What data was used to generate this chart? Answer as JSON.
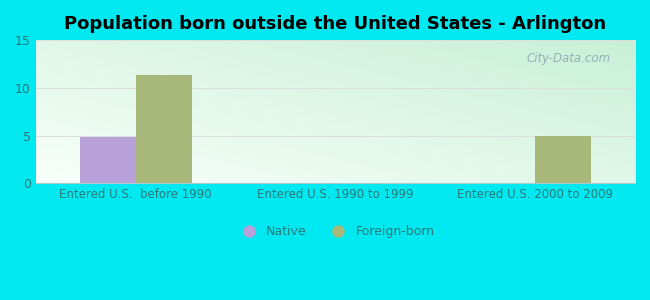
{
  "title": "Population born outside the United States - Arlington",
  "title_fontsize": 13,
  "title_fontweight": "bold",
  "categories": [
    "Entered U.S.  before 1990",
    "Entered U.S. 1990 to 1999",
    "Entered U.S. 2000 to 2009"
  ],
  "native_values": [
    4.9,
    0,
    0
  ],
  "foreign_born_values": [
    11.4,
    0,
    5.0
  ],
  "native_color": "#b8a0d8",
  "foreign_born_color": "#a8b87a",
  "ylim": [
    0,
    15
  ],
  "yticks": [
    0,
    5,
    10,
    15
  ],
  "background_outer": "#00e8f0",
  "bar_width": 0.28,
  "grid_color": "#dddddd",
  "watermark": "City-Data.com",
  "legend_native_label": "Native",
  "legend_foreign_label": "Foreign-born",
  "xlabel_fontsize": 8.5,
  "tick_label_color": "#2a7a7a",
  "axis_label_color": "#2a7a7a"
}
